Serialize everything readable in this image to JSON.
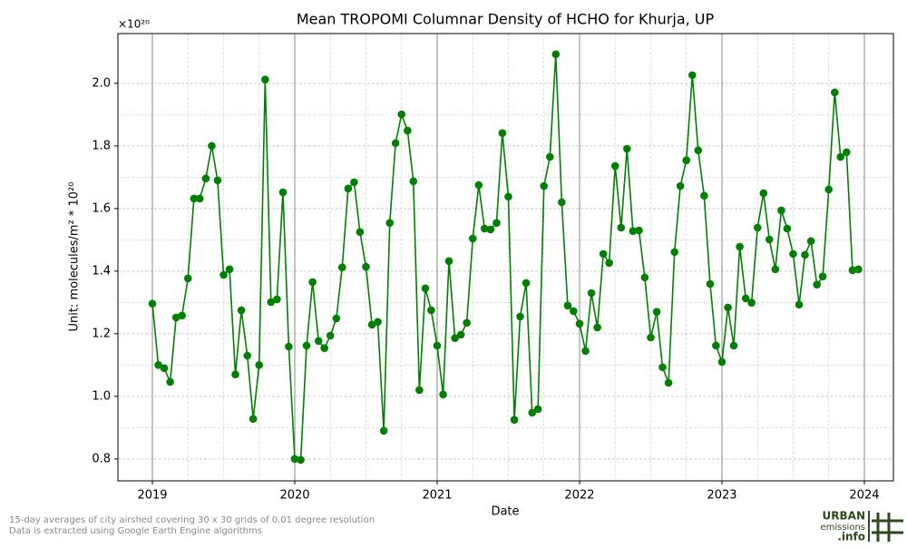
{
  "chart_data": {
    "type": "line",
    "title": "Mean TROPOMI Columnar Density of HCHO for Khurja, UP",
    "x_label": "Date",
    "y_label": "Unit: molecules/m² * 10²⁰",
    "y_offset_label": "×10²⁰",
    "x": [
      2019,
      2019.042,
      2019.083,
      2019.125,
      2019.167,
      2019.208,
      2019.25,
      2019.292,
      2019.333,
      2019.375,
      2019.417,
      2019.458,
      2019.5,
      2019.542,
      2019.583,
      2019.625,
      2019.667,
      2019.708,
      2019.75,
      2019.792,
      2019.833,
      2019.875,
      2019.917,
      2019.958,
      2020,
      2020.042,
      2020.083,
      2020.125,
      2020.167,
      2020.208,
      2020.25,
      2020.292,
      2020.333,
      2020.375,
      2020.417,
      2020.458,
      2020.5,
      2020.542,
      2020.583,
      2020.625,
      2020.667,
      2020.708,
      2020.75,
      2020.792,
      2020.833,
      2020.875,
      2020.917,
      2020.958,
      2021,
      2021.042,
      2021.083,
      2021.125,
      2021.167,
      2021.208,
      2021.25,
      2021.292,
      2021.333,
      2021.375,
      2021.417,
      2021.458,
      2021.5,
      2021.542,
      2021.583,
      2021.625,
      2021.667,
      2021.708,
      2021.75,
      2021.792,
      2021.833,
      2021.875,
      2021.917,
      2021.958,
      2022,
      2022.042,
      2022.083,
      2022.125,
      2022.167,
      2022.208,
      2022.25,
      2022.292,
      2022.333,
      2022.375,
      2022.417,
      2022.458,
      2022.5,
      2022.542,
      2022.583,
      2022.625,
      2022.667,
      2022.708,
      2022.75,
      2022.792,
      2022.833,
      2022.875,
      2022.917,
      2022.958,
      2023,
      2023.042,
      2023.083,
      2023.125,
      2023.167,
      2023.208,
      2023.25,
      2023.292,
      2023.333,
      2023.375,
      2023.417,
      2023.458,
      2023.5,
      2023.542,
      2023.583,
      2023.625,
      2023.667,
      2023.708,
      2023.75,
      2023.792,
      2023.833,
      2023.875,
      2023.917,
      2023.958
    ],
    "series": [
      {
        "color": "#008000",
        "values": [
          1.296,
          1.1,
          1.09,
          1.046,
          1.252,
          1.258,
          1.377,
          1.632,
          1.632,
          1.696,
          1.8,
          1.69,
          1.388,
          1.406,
          1.07,
          1.275,
          1.13,
          0.928,
          1.1,
          2.012,
          1.301,
          1.31,
          1.652,
          1.159,
          0.8,
          0.797,
          1.162,
          1.365,
          1.177,
          1.154,
          1.194,
          1.249,
          1.412,
          1.664,
          1.684,
          1.525,
          1.414,
          1.229,
          1.238,
          0.89,
          1.554,
          1.809,
          1.901,
          1.849,
          1.687,
          1.02,
          1.345,
          1.275,
          1.162,
          1.006,
          1.432,
          1.186,
          1.197,
          1.235,
          1.504,
          1.675,
          1.536,
          1.533,
          1.554,
          1.841,
          1.638,
          0.925,
          1.255,
          1.362,
          0.948,
          0.959,
          1.672,
          1.765,
          2.093,
          1.62,
          1.29,
          1.272,
          1.232,
          1.145,
          1.33,
          1.22,
          1.455,
          1.426,
          1.736,
          1.539,
          1.791,
          1.528,
          1.53,
          1.38,
          1.188,
          1.27,
          1.093,
          1.043,
          1.461,
          1.672,
          1.754,
          2.026,
          1.786,
          1.641,
          1.359,
          1.162,
          1.11,
          1.284,
          1.162,
          1.478,
          1.313,
          1.299,
          1.539,
          1.649,
          1.501,
          1.406,
          1.594,
          1.536,
          1.455,
          1.293,
          1.452,
          1.496,
          1.357,
          1.383,
          1.661,
          1.971,
          1.765,
          1.78,
          1.403,
          1.406
        ]
      }
    ],
    "xlim": [
      2018.758,
      2024.204
    ],
    "xticks": [
      2019,
      2020,
      2021,
      2022,
      2023,
      2024
    ],
    "ylim": [
      0.73,
      2.159
    ],
    "yticks": [
      {
        "value": 0.8,
        "label": "0.8"
      },
      {
        "value": 1.0,
        "label": "1.0"
      },
      {
        "value": 1.2,
        "label": "1.2"
      },
      {
        "value": 1.4,
        "label": "1.4"
      },
      {
        "value": 1.6,
        "label": "1.6"
      },
      {
        "value": 1.8,
        "label": "1.8"
      },
      {
        "value": 2.0,
        "label": "2.0"
      }
    ],
    "grid": true
  },
  "footnote": [
    "15-day averages of city airshed covering 30 x 30 grids of 0.01 degree resolution",
    "Data is extracted using Google Earth Engine algorithms"
  ],
  "logo": {
    "line1": "URBAN",
    "line2": "emissions",
    "line3": ".info"
  }
}
